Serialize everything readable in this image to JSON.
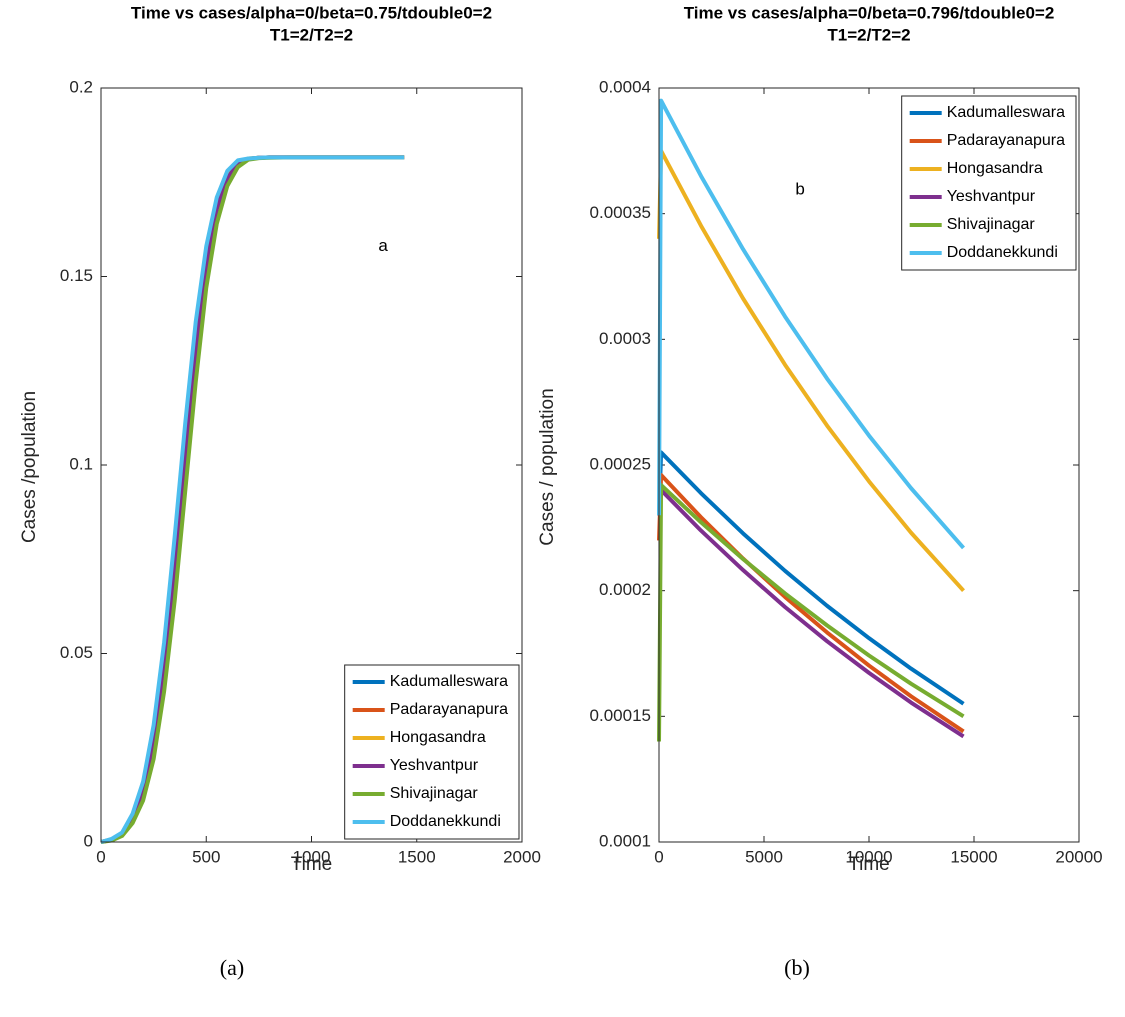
{
  "chart_data": [
    {
      "type": "line",
      "title": [
        "Time vs cases/alpha=0/beta=0.75/tdouble0=2",
        "T1=2/T2=2"
      ],
      "xlabel": "Time",
      "ylabel": "Cases /population",
      "annotation": "a",
      "caption": "(a)",
      "xlim": [
        0,
        2000
      ],
      "ylim": [
        0,
        0.2
      ],
      "xticks": [
        0,
        500,
        1000,
        1500,
        2000
      ],
      "yticks": [
        0,
        0.05,
        0.1,
        0.15,
        0.2
      ],
      "legend": "southeast",
      "box": true,
      "x": [
        0,
        50,
        100,
        150,
        200,
        250,
        300,
        350,
        400,
        450,
        500,
        550,
        600,
        650,
        700,
        750,
        800,
        900,
        1000,
        1100,
        1200,
        1300,
        1440
      ],
      "series": [
        {
          "name": "Kadumalleswara",
          "color": "#0072BD",
          "values": [
            0,
            0.0006,
            0.002,
            0.006,
            0.013,
            0.026,
            0.046,
            0.072,
            0.102,
            0.13,
            0.153,
            0.168,
            0.176,
            0.18,
            0.1812,
            0.1815,
            0.1816,
            0.1816,
            0.1816,
            0.1816,
            0.1816,
            0.1816,
            0.1816
          ]
        },
        {
          "name": "Padarayanapura",
          "color": "#D95319",
          "values": [
            0,
            0.0006,
            0.002,
            0.006,
            0.013,
            0.026,
            0.046,
            0.072,
            0.102,
            0.13,
            0.153,
            0.168,
            0.176,
            0.18,
            0.1812,
            0.1815,
            0.1816,
            0.1816,
            0.1816,
            0.1816,
            0.1816,
            0.1816,
            0.1816
          ]
        },
        {
          "name": "Hongasandra",
          "color": "#EDB120",
          "values": [
            0,
            0.0007,
            0.0023,
            0.007,
            0.015,
            0.029,
            0.05,
            0.077,
            0.107,
            0.135,
            0.156,
            0.17,
            0.177,
            0.1805,
            0.1813,
            0.1815,
            0.1816,
            0.1816,
            0.1816,
            0.1816,
            0.1816,
            0.1816,
            0.1816
          ]
        },
        {
          "name": "Yeshvantpur",
          "color": "#7E2F8E",
          "values": [
            0,
            0.0006,
            0.002,
            0.006,
            0.013,
            0.026,
            0.046,
            0.072,
            0.102,
            0.13,
            0.153,
            0.168,
            0.176,
            0.18,
            0.1812,
            0.1815,
            0.1816,
            0.1816,
            0.1816,
            0.1816,
            0.1816,
            0.1816,
            0.1816
          ]
        },
        {
          "name": "Shivajinagar",
          "color": "#77AC30",
          "values": [
            0,
            0.0004,
            0.0016,
            0.005,
            0.011,
            0.022,
            0.04,
            0.064,
            0.093,
            0.122,
            0.147,
            0.164,
            0.174,
            0.179,
            0.181,
            0.1814,
            0.1815,
            0.1816,
            0.1816,
            0.1816,
            0.1816,
            0.1816,
            0.1816
          ]
        },
        {
          "name": "Doddanekkundi",
          "color": "#4DBEEE",
          "values": [
            0,
            0.0008,
            0.0025,
            0.0075,
            0.016,
            0.031,
            0.053,
            0.081,
            0.111,
            0.138,
            0.158,
            0.171,
            0.178,
            0.1808,
            0.1813,
            0.1815,
            0.1816,
            0.1816,
            0.1816,
            0.1816,
            0.1816,
            0.1816,
            0.1816
          ]
        }
      ]
    },
    {
      "type": "line",
      "title": [
        "Time vs cases/alpha=0/beta=0.796/tdouble0=2",
        "T1=2/T2=2"
      ],
      "xlabel": "Time",
      "ylabel": "Cases / population",
      "annotation": "b",
      "caption": "(b)",
      "xlim": [
        0,
        20000
      ],
      "ylim": [
        0.0001,
        0.0004
      ],
      "xticks": [
        0,
        5000,
        10000,
        15000,
        20000
      ],
      "yticks": [
        0.0001,
        0.00015,
        0.0002,
        0.00025,
        0.0003,
        0.00035,
        0.0004
      ],
      "legend": "northeast",
      "box": true,
      "x": [
        0,
        100,
        2000,
        4000,
        6000,
        8000,
        10000,
        12000,
        14500
      ],
      "series": [
        {
          "name": "Kadumalleswara",
          "color": "#0072BD",
          "values": [
            0.00023,
            0.000255,
            0.0002388,
            0.0002228,
            0.0002079,
            0.000194,
            0.0001811,
            0.000169,
            0.000155
          ]
        },
        {
          "name": "Padarayanapura",
          "color": "#D95319",
          "values": [
            0.00022,
            0.000246,
            0.0002292,
            0.0002128,
            0.0001975,
            0.0001834,
            0.0001702,
            0.000158,
            0.000144
          ]
        },
        {
          "name": "Hongasandra",
          "color": "#EDB120",
          "values": [
            0.00034,
            0.000375,
            0.0003452,
            0.0003163,
            0.0002899,
            0.0002657,
            0.0002435,
            0.0002231,
            0.0002
          ]
        },
        {
          "name": "Yeshvantpur",
          "color": "#7E2F8E",
          "values": [
            0.00023,
            0.00024,
            0.0002239,
            0.0002082,
            0.0001935,
            0.0001799,
            0.0001673,
            0.0001555,
            0.000142
          ]
        },
        {
          "name": "Shivajinagar",
          "color": "#77AC30",
          "values": [
            0.00014,
            0.000242,
            0.0002272,
            0.0002126,
            0.0001989,
            0.0001862,
            0.0001742,
            0.000163,
            0.00015
          ]
        },
        {
          "name": "Doddanekkundi",
          "color": "#4DBEEE",
          "values": [
            0.00023,
            0.000395,
            0.000365,
            0.0003359,
            0.0003091,
            0.0002844,
            0.0002617,
            0.0002408,
            0.000217
          ]
        }
      ]
    }
  ]
}
